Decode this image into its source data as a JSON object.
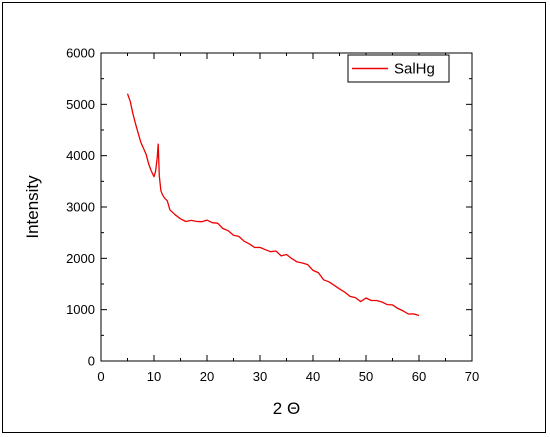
{
  "chart_data": {
    "type": "line",
    "title": "",
    "xlabel": "2 Θ",
    "ylabel": "Intensity",
    "xlim": [
      0,
      70
    ],
    "ylim": [
      0,
      6000
    ],
    "x_ticks": [
      0,
      10,
      20,
      30,
      40,
      50,
      60,
      70
    ],
    "y_ticks": [
      0,
      1000,
      2000,
      3000,
      4000,
      5000,
      6000
    ],
    "x_tick_labels": [
      "0",
      "10",
      "20",
      "30",
      "40",
      "50",
      "60",
      "70"
    ],
    "y_tick_labels": [
      "0",
      "1000",
      "2000",
      "3000",
      "4000",
      "5000",
      "6000"
    ],
    "grid": false,
    "legend_position": "top-right",
    "series": [
      {
        "name": "SalHg",
        "color": "#ee0000",
        "x": [
          5,
          5.5,
          6,
          6.5,
          7,
          7.5,
          8,
          8.5,
          9,
          9.5,
          10,
          10.3,
          10.6,
          10.8,
          11,
          11.3,
          11.6,
          12,
          12.5,
          13,
          14,
          15,
          16,
          17,
          18,
          19,
          20,
          21,
          22,
          23,
          24,
          25,
          26,
          27,
          28,
          29,
          30,
          31,
          32,
          33,
          34,
          35,
          36,
          37,
          38,
          39,
          40,
          41,
          42,
          43,
          44,
          45,
          46,
          47,
          48,
          49,
          50,
          51,
          52,
          53,
          54,
          55,
          56,
          57,
          58,
          59,
          60
        ],
        "y": [
          5150,
          5000,
          4800,
          4600,
          4450,
          4300,
          4200,
          4050,
          3900,
          3750,
          3600,
          3650,
          3900,
          4200,
          3600,
          3300,
          3200,
          3150,
          3100,
          3000,
          2900,
          2800,
          2780,
          2800,
          2780,
          2760,
          2730,
          2680,
          2620,
          2550,
          2480,
          2420,
          2370,
          2320,
          2300,
          2280,
          2260,
          2220,
          2180,
          2150,
          2100,
          2020,
          1980,
          1920,
          1870,
          1820,
          1760,
          1710,
          1650,
          1580,
          1500,
          1440,
          1380,
          1320,
          1260,
          1220,
          1180,
          1150,
          1120,
          1100,
          1080,
          1050,
          1020,
          1000,
          980,
          960,
          940
        ]
      }
    ]
  }
}
